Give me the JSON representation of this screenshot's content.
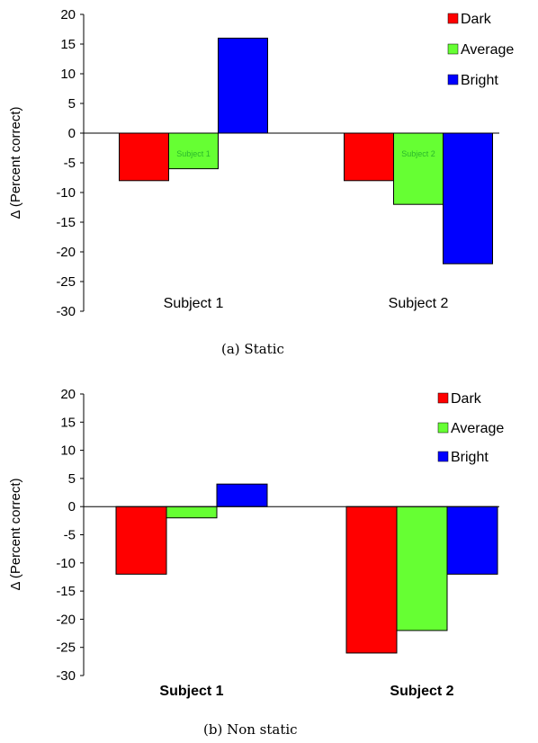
{
  "colors": {
    "Dark": "#ff0000",
    "Average": "#66ff33",
    "Bright": "#0000ff"
  },
  "chart_data": [
    {
      "type": "bar",
      "caption": "(a) Static",
      "ylabel": "Δ (Percent correct)",
      "ylim": [
        -30,
        20
      ],
      "yticks": [
        20,
        15,
        10,
        5,
        0,
        -5,
        -10,
        -15,
        -20,
        -25,
        -30
      ],
      "categories": [
        "Subject 1",
        "Subject 2"
      ],
      "category_labels_bold": false,
      "inner_labels": [
        "Subject 1",
        "Subject 2"
      ],
      "legend": [
        "Dark",
        "Average",
        "Bright"
      ],
      "legend_position": "top-right",
      "grid": false,
      "series": [
        {
          "name": "Dark",
          "values": [
            -8,
            -8
          ]
        },
        {
          "name": "Average",
          "values": [
            -6,
            -12
          ]
        },
        {
          "name": "Bright",
          "values": [
            16,
            -22
          ]
        }
      ]
    },
    {
      "type": "bar",
      "caption": "(b) Non static",
      "ylabel": "Δ (Percent correct)",
      "ylim": [
        -30,
        20
      ],
      "yticks": [
        20,
        15,
        10,
        5,
        0,
        -5,
        -10,
        -15,
        -20,
        -25,
        -30
      ],
      "categories": [
        "Subject 1",
        "Subject 2"
      ],
      "category_labels_bold": true,
      "legend": [
        "Dark",
        "Average",
        "Bright"
      ],
      "legend_position": "top-right",
      "grid": false,
      "series": [
        {
          "name": "Dark",
          "values": [
            -12,
            -26
          ]
        },
        {
          "name": "Average",
          "values": [
            -2,
            -22
          ]
        },
        {
          "name": "Bright",
          "values": [
            4,
            -12
          ]
        }
      ]
    }
  ]
}
